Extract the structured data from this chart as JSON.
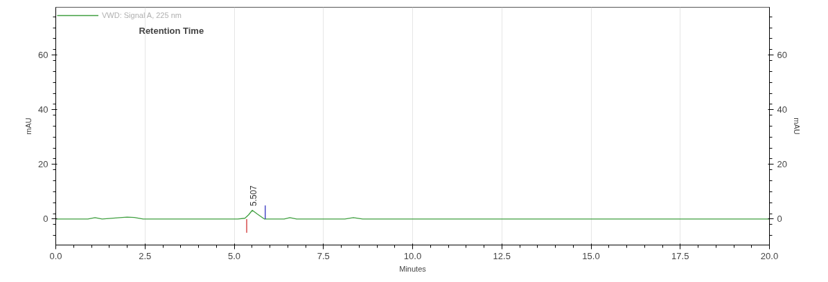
{
  "chart_data": {
    "type": "line",
    "xlabel": "Minutes",
    "ylabel": "mAU",
    "y2label": "mAU",
    "xlim": [
      0,
      20
    ],
    "xticks": [
      {
        "value": 0,
        "label": "0.0"
      },
      2.5,
      {
        "value": 5,
        "label": "5.0"
      },
      7.5,
      {
        "value": 10,
        "label": "10.0"
      },
      12.5,
      {
        "value": 15,
        "label": "15.0"
      },
      17.5,
      {
        "value": 20,
        "label": "20.0"
      }
    ],
    "ylim": [
      -9.5,
      77.5
    ],
    "yticks": [
      0,
      20,
      40,
      60
    ],
    "y2lim": [
      -9.5,
      77.5
    ],
    "y2ticks": [
      0,
      20,
      40,
      60
    ],
    "grid": "x",
    "legend": "top left",
    "marker": "none",
    "line_style": "solid",
    "series": [
      {
        "name": "VWD: Signal A, 225 nm",
        "color": "#3f9f3f",
        "x": [
          0,
          0.9,
          1.1,
          1.3,
          1.8,
          2.0,
          2.2,
          2.45,
          5.1,
          5.3,
          5.4,
          5.507,
          5.65,
          5.85,
          6.0,
          6.4,
          6.56,
          6.75,
          8.1,
          8.34,
          8.6,
          10,
          12.5,
          15,
          17.5,
          20
        ],
        "values": [
          0,
          0,
          0.5,
          0,
          0.5,
          0.7,
          0.6,
          0,
          0,
          0.3,
          1.5,
          3.2,
          1.8,
          0,
          0,
          0,
          0.5,
          0,
          0,
          0.5,
          0,
          0,
          0,
          0,
          0,
          0
        ]
      },
      {
        "color": "#d03030",
        "x": [
          5.35,
          5.35
        ],
        "values": [
          0,
          -5
        ]
      },
      {
        "color": "#3030c0",
        "x": [
          5.87,
          5.87
        ],
        "values": [
          0,
          5
        ]
      }
    ],
    "annotations": [
      "Retention Time",
      {
        "text": "5.507",
        "x": 5.507,
        "y": 3.2
      }
    ]
  }
}
